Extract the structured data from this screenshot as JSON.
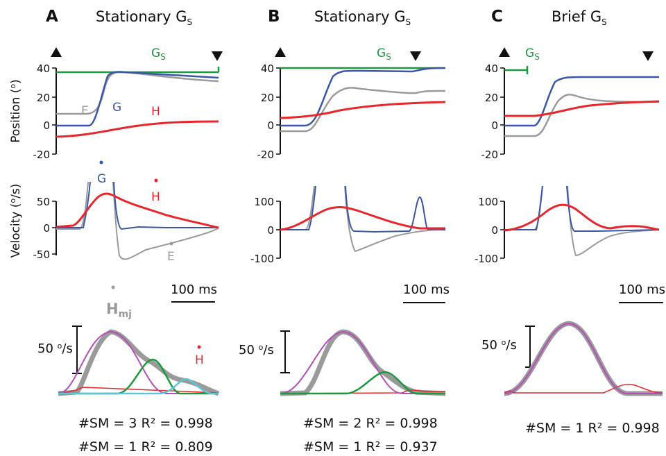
{
  "colors": {
    "G": "#3a56a8",
    "H": "#e8262b",
    "E": "#9a9a9a",
    "Gs": "#1a9a3e",
    "sm_main": "#b64fb5",
    "sm_second": "#1a9a3e",
    "sm_third": "#5cc6d9",
    "sum": "#9a9a9a",
    "axis": "#111111"
  },
  "shared_labels": {
    "position_ylabel": "Position (°)",
    "position_ylabel_main": "Position (",
    "position_ylabel_deg": "o",
    "position_ylabel_end": ")",
    "velocity_ylabel_main": "Velocity (",
    "velocity_ylabel_unit": "o",
    "velocity_ylabel_end": "/s)",
    "scalebar_time": "100 ms",
    "scalebar_velocity": "50 °/s",
    "scalebar_velocity_num": "50 ",
    "scalebar_velocity_deg": "o",
    "scalebar_velocity_end": "/s",
    "hmj_main": "H",
    "hmj_sub": "mj",
    "gs_main": "G",
    "gs_sub": "S"
  },
  "panels": [
    {
      "letter": "A",
      "title_main": "Stationary G",
      "title_sub": "S",
      "trace_labels": {
        "E": "E",
        "G": "G",
        "H": "H",
        "vel_G": "G",
        "vel_H": "H",
        "vel_E": "E",
        "sm_H": "H"
      },
      "stats": [
        "#SM = 3  R² = 0.998",
        "#SM = 1  R² = 0.809"
      ]
    },
    {
      "letter": "B",
      "title_main": "Stationary G",
      "title_sub": "S",
      "trace_labels": {},
      "stats": [
        "#SM = 2  R² = 0.998",
        "#SM = 1  R² = 0.937"
      ]
    },
    {
      "letter": "C",
      "title_main": "Brief G",
      "title_sub": "S",
      "trace_labels": {},
      "stats": [
        "#SM = 1  R² = 0.998"
      ]
    }
  ],
  "chart_data": [
    {
      "panel": "A",
      "row": "position",
      "type": "line",
      "ylabel": "Position (°)",
      "ylim": [
        -20,
        40
      ],
      "yticks": [
        "40",
        "20",
        "0",
        "-20"
      ],
      "series": [
        {
          "name": "G",
          "x": [
            0,
            60,
            75,
            90,
            110,
            160,
            240
          ],
          "values": [
            0,
            0,
            17,
            32,
            37,
            35,
            34
          ]
        },
        {
          "name": "H",
          "x": [
            0,
            60,
            100,
            150,
            200,
            240
          ],
          "values": [
            -8,
            -7,
            -3,
            1,
            3,
            3
          ]
        },
        {
          "name": "E",
          "x": [
            0,
            55,
            80,
            110,
            160,
            240
          ],
          "values": [
            8,
            8,
            28,
            37,
            32,
            31
          ]
        },
        {
          "name": "Gs",
          "x": [
            0,
            240
          ],
          "values": [
            37,
            37
          ]
        }
      ]
    },
    {
      "panel": "A",
      "row": "velocity",
      "type": "line",
      "ylabel": "Velocity (°/s)",
      "ylim": [
        -50,
        50
      ],
      "yticks": [
        "50",
        "0",
        "-50"
      ],
      "series": [
        {
          "name": "H",
          "x": [
            0,
            45,
            65,
            80,
            120,
            170,
            240
          ],
          "values": [
            0,
            10,
            50,
            60,
            40,
            20,
            0
          ]
        },
        {
          "name": "G",
          "x": [
            0,
            60,
            100,
            240
          ],
          "values": [
            0,
            0,
            -2,
            0
          ]
        },
        {
          "name": "E",
          "x": [
            0,
            60,
            110,
            150,
            200,
            240
          ],
          "values": [
            0,
            0,
            -55,
            -35,
            -20,
            0
          ]
        }
      ]
    },
    {
      "panel": "A",
      "row": "submovements",
      "type": "line",
      "series": [
        {
          "name": "Hmj",
          "values": [
            0,
            5,
            1,
            0
          ]
        },
        {
          "name": "submovement 1",
          "values": [
            0,
            1,
            0
          ]
        },
        {
          "name": "submovement 2",
          "values": [
            0,
            0.52,
            0
          ]
        },
        {
          "name": "submovement 3",
          "values": [
            0,
            0.22,
            0
          ]
        }
      ]
    },
    {
      "panel": "B",
      "row": "position",
      "type": "line",
      "ylim": [
        -20,
        40
      ],
      "yticks": [
        "40",
        "20",
        "0",
        "-20"
      ],
      "series": [
        {
          "name": "G",
          "x": [
            0,
            40,
            80,
            120,
            190,
            240
          ],
          "values": [
            0,
            0,
            20,
            37,
            37,
            40
          ]
        },
        {
          "name": "H",
          "x": [
            0,
            60,
            120,
            180,
            240
          ],
          "values": [
            5,
            7,
            12,
            15,
            16
          ]
        },
        {
          "name": "E",
          "x": [
            0,
            40,
            80,
            100,
            180,
            240
          ],
          "values": [
            -5,
            -5,
            15,
            27,
            22,
            24
          ]
        },
        {
          "name": "Gs",
          "x": [
            0,
            240
          ],
          "values": [
            40,
            40
          ]
        }
      ]
    },
    {
      "panel": "B",
      "row": "velocity",
      "type": "line",
      "ylim": [
        -100,
        100
      ],
      "yticks": [
        "100",
        "0",
        "-100"
      ],
      "series": [
        {
          "name": "H",
          "x": [
            0,
            40,
            70,
            100,
            160,
            240
          ],
          "values": [
            0,
            40,
            75,
            70,
            25,
            5
          ]
        },
        {
          "name": "G",
          "x": [
            0,
            100,
            180,
            200,
            215,
            240
          ],
          "values": [
            0,
            -3,
            -2,
            105,
            0,
            0
          ]
        },
        {
          "name": "E",
          "x": [
            0,
            80,
            110,
            170,
            240
          ],
          "values": [
            0,
            0,
            -75,
            -40,
            0
          ]
        }
      ]
    },
    {
      "panel": "B",
      "row": "submovements",
      "type": "line",
      "series": [
        {
          "name": "submovement 1",
          "values": [
            0,
            1,
            0
          ]
        },
        {
          "name": "submovement 2",
          "values": [
            0,
            0.42,
            0
          ]
        }
      ]
    },
    {
      "panel": "C",
      "row": "position",
      "type": "line",
      "ylim": [
        -20,
        40
      ],
      "yticks": [
        "40",
        "20",
        "0",
        "-20"
      ],
      "series": [
        {
          "name": "G",
          "x": [
            0,
            40,
            70,
            100,
            160,
            240
          ],
          "values": [
            0,
            0,
            15,
            33,
            33,
            33
          ]
        },
        {
          "name": "H",
          "x": [
            0,
            40,
            90,
            150,
            240
          ],
          "values": [
            7,
            7,
            12,
            15,
            16
          ]
        },
        {
          "name": "E",
          "x": [
            0,
            50,
            80,
            100,
            160,
            240
          ],
          "values": [
            -7,
            -7,
            12,
            22,
            17,
            17
          ]
        },
        {
          "name": "Gs",
          "x": [
            0,
            25
          ],
          "values": [
            38,
            38
          ]
        }
      ]
    },
    {
      "panel": "C",
      "row": "velocity",
      "type": "line",
      "ylim": [
        -100,
        100
      ],
      "yticks": [
        "100",
        "0",
        "-100"
      ],
      "series": [
        {
          "name": "H",
          "x": [
            0,
            40,
            80,
            120,
            150,
            180,
            240
          ],
          "values": [
            0,
            30,
            80,
            30,
            0,
            8,
            0
          ]
        },
        {
          "name": "G",
          "x": [
            0,
            60,
            110,
            240
          ],
          "values": [
            0,
            0,
            -2,
            0
          ]
        },
        {
          "name": "E",
          "x": [
            0,
            70,
            100,
            150,
            240
          ],
          "values": [
            0,
            0,
            -90,
            -20,
            0
          ]
        }
      ]
    },
    {
      "panel": "C",
      "row": "submovements",
      "type": "line",
      "series": [
        {
          "name": "submovement 1",
          "values": [
            0,
            1,
            0
          ]
        }
      ]
    }
  ]
}
